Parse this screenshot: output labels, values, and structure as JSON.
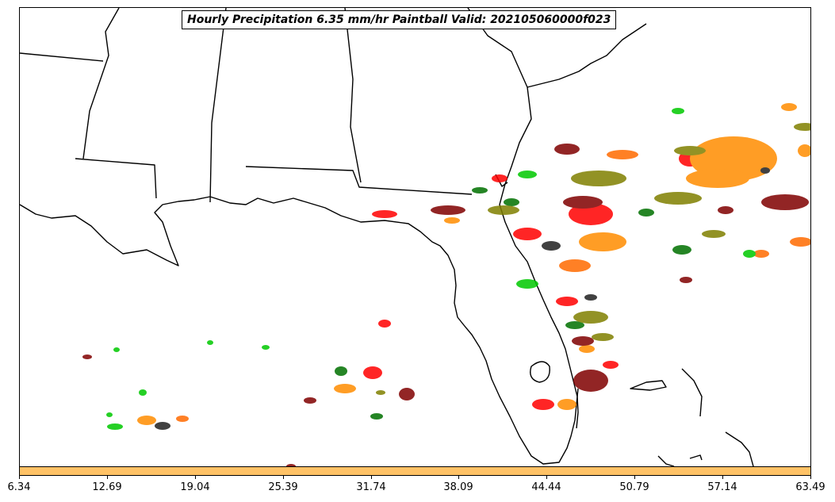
{
  "title": "Hourly Precipitation 6.35 mm/hr Paintball Valid: 202105060000f023",
  "colorbar": {
    "color": "#ffc266",
    "tick_labels": [
      "6.34",
      "12.69",
      "19.04",
      "25.39",
      "31.74",
      "38.09",
      "44.44",
      "50.79",
      "57.14",
      "63.49"
    ]
  },
  "colors": {
    "coastline": "#000000",
    "member_colors": [
      "#ff0000",
      "#ff8c00",
      "#ff6a00",
      "#00c800",
      "#007000",
      "#808000",
      "#800000",
      "#202020"
    ]
  }
}
